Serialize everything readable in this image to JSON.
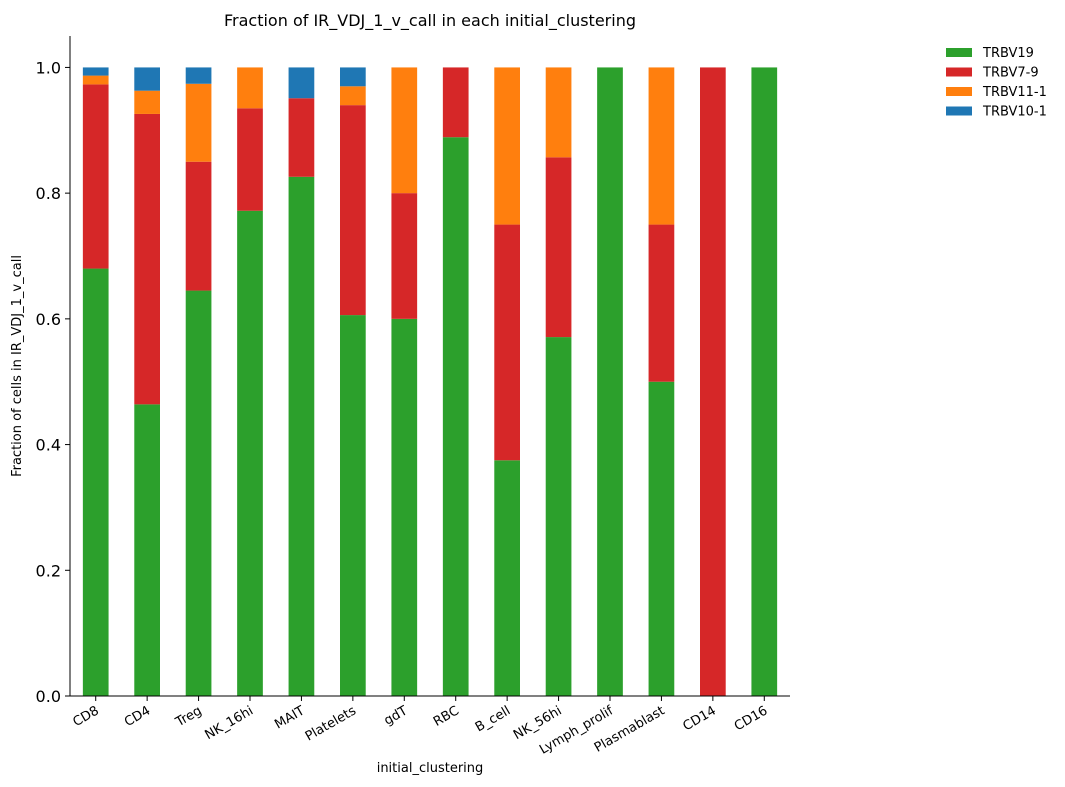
{
  "chart_data": {
    "type": "bar",
    "stacked": true,
    "title": "Fraction of IR_VDJ_1_v_call in each initial_clustering",
    "xlabel": "initial_clustering",
    "ylabel": "Fraction of cells in IR_VDJ_1_v_call",
    "ylim": [
      0,
      1.05
    ],
    "yticks": [
      "0.0",
      "0.2",
      "0.4",
      "0.6",
      "0.8",
      "1.0"
    ],
    "grid": false,
    "legend_position": "top-right, outside plot",
    "categories": [
      "CD8",
      "CD4",
      "Treg",
      "NK_16hi",
      "MAIT",
      "Platelets",
      "gdT",
      "RBC",
      "B_cell",
      "NK_56hi",
      "Lymph_prolif",
      "Plasmablast",
      "CD14",
      "CD16"
    ],
    "series": [
      {
        "name": "TRBV19",
        "color": "#2ca02c",
        "values": [
          0.68,
          0.464,
          0.645,
          0.772,
          0.826,
          0.606,
          0.6,
          0.889,
          0.375,
          0.571,
          1.0,
          0.5,
          0.0,
          1.0
        ]
      },
      {
        "name": "TRBV7-9",
        "color": "#d62728",
        "values": [
          0.293,
          0.462,
          0.205,
          0.163,
          0.125,
          0.334,
          0.2,
          0.111,
          0.375,
          0.286,
          0.0,
          0.25,
          1.0,
          0.0
        ]
      },
      {
        "name": "TRBV11-1",
        "color": "#ff7f0e",
        "values": [
          0.014,
          0.037,
          0.124,
          0.065,
          0.0,
          0.03,
          0.2,
          0.0,
          0.25,
          0.143,
          0.0,
          0.25,
          0.0,
          0.0
        ]
      },
      {
        "name": "TRBV10-1",
        "color": "#1f77b4",
        "values": [
          0.013,
          0.037,
          0.026,
          0.0,
          0.049,
          0.03,
          0.0,
          0.0,
          0.0,
          0.0,
          0.0,
          0.0,
          0.0,
          0.0
        ]
      }
    ]
  }
}
